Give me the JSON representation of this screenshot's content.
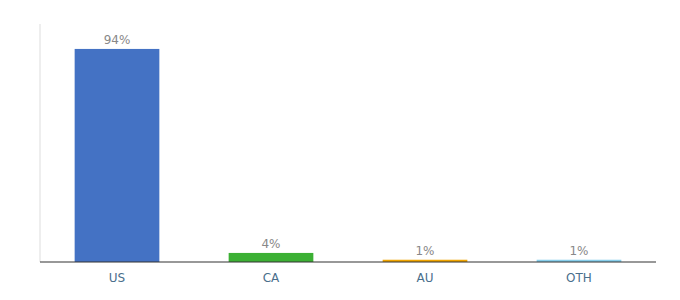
{
  "chart_data": {
    "type": "bar",
    "categories": [
      "US",
      "CA",
      "AU",
      "OTH"
    ],
    "values": [
      94,
      4,
      1,
      1
    ],
    "value_labels": [
      "94%",
      "4%",
      "1%",
      "1%"
    ],
    "colors": [
      "#4472c4",
      "#3cb034",
      "#f0a500",
      "#87ceeb"
    ],
    "ylim": [
      0,
      105
    ],
    "data_labels": true,
    "tick_labels": "x"
  }
}
